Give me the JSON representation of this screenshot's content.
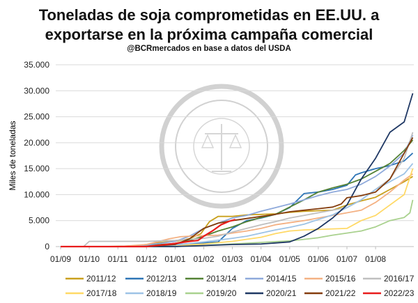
{
  "chart_data": {
    "type": "line",
    "title_line1": "Toneladas de soja comprometidas en EE.UU. a",
    "title_line2": "exportarse en la próxima campaña comercial",
    "subtitle": "@BCRmercados  en base a datos del USDA",
    "ylabel": "Miles de toneladas",
    "ylim": [
      0,
      35000
    ],
    "yticks": [
      0,
      5000,
      10000,
      15000,
      20000,
      25000,
      30000,
      35000
    ],
    "ytick_labels": [
      "0",
      "5.000",
      "10.000",
      "15.000",
      "20.000",
      "25.000",
      "30.000",
      "35.000"
    ],
    "xlim": [
      0,
      12.4
    ],
    "xticks": [
      0,
      1,
      2,
      3,
      4,
      5,
      6,
      7,
      8,
      9,
      10,
      11
    ],
    "xtick_labels": [
      "01/09",
      "01/10",
      "01/11",
      "01/12",
      "01/01",
      "01/02",
      "01/03",
      "01/04",
      "01/05",
      "01/06",
      "01/07",
      "01/08"
    ],
    "grid": "horizontal",
    "legend_position": "bottom",
    "watermark": "BOLSA DE COMERCIO DE ROSARIO",
    "series": [
      {
        "name": "2011/12",
        "color": "#c9a01c",
        "points": [
          [
            0,
            0
          ],
          [
            1.5,
            0
          ],
          [
            2.5,
            100
          ],
          [
            3.0,
            400
          ],
          [
            3.5,
            800
          ],
          [
            4.0,
            1000
          ],
          [
            4.5,
            1500
          ],
          [
            4.9,
            2500
          ],
          [
            5.2,
            4800
          ],
          [
            5.5,
            5800
          ],
          [
            6.0,
            5800
          ],
          [
            6.5,
            6100
          ],
          [
            7.0,
            6200
          ],
          [
            7.5,
            6300
          ],
          [
            8.0,
            6600
          ],
          [
            8.5,
            6800
          ],
          [
            9.0,
            6900
          ],
          [
            9.5,
            7000
          ],
          [
            10.0,
            8000
          ],
          [
            10.5,
            8800
          ],
          [
            11.0,
            9500
          ],
          [
            11.5,
            11000
          ],
          [
            12.0,
            12500
          ],
          [
            12.3,
            13500
          ]
        ]
      },
      {
        "name": "2012/13",
        "color": "#2e75b6",
        "points": [
          [
            0,
            0
          ],
          [
            2.0,
            0
          ],
          [
            3.0,
            100
          ],
          [
            4.0,
            400
          ],
          [
            5.0,
            700
          ],
          [
            5.5,
            900
          ],
          [
            6.0,
            3500
          ],
          [
            6.5,
            5000
          ],
          [
            7.0,
            5500
          ],
          [
            7.5,
            6200
          ],
          [
            8.0,
            7500
          ],
          [
            8.5,
            10200
          ],
          [
            9.0,
            10500
          ],
          [
            9.5,
            11000
          ],
          [
            10.0,
            11800
          ],
          [
            10.3,
            13800
          ],
          [
            10.5,
            14200
          ],
          [
            11.0,
            15000
          ],
          [
            11.5,
            15600
          ],
          [
            12.0,
            16500
          ],
          [
            12.3,
            18000
          ]
        ]
      },
      {
        "name": "2013/14",
        "color": "#548235",
        "points": [
          [
            0,
            0
          ],
          [
            2.0,
            0
          ],
          [
            3.0,
            200
          ],
          [
            4.0,
            600
          ],
          [
            4.5,
            1200
          ],
          [
            5.0,
            2000
          ],
          [
            5.5,
            3000
          ],
          [
            6.0,
            3800
          ],
          [
            6.5,
            4800
          ],
          [
            7.0,
            5600
          ],
          [
            7.5,
            6200
          ],
          [
            8.0,
            7600
          ],
          [
            8.5,
            9000
          ],
          [
            9.0,
            10500
          ],
          [
            9.5,
            11300
          ],
          [
            10.0,
            12000
          ],
          [
            10.5,
            13000
          ],
          [
            11.0,
            14500
          ],
          [
            11.5,
            16000
          ],
          [
            12.0,
            18500
          ],
          [
            12.3,
            20500
          ]
        ]
      },
      {
        "name": "2014/15",
        "color": "#8ea9db",
        "points": [
          [
            0,
            0
          ],
          [
            2.0,
            0
          ],
          [
            3.0,
            300
          ],
          [
            4.0,
            1000
          ],
          [
            4.5,
            2000
          ],
          [
            5.0,
            3500
          ],
          [
            5.5,
            4500
          ],
          [
            6.0,
            5500
          ],
          [
            6.5,
            6000
          ],
          [
            7.0,
            6800
          ],
          [
            7.5,
            7500
          ],
          [
            8.0,
            8200
          ],
          [
            8.5,
            9000
          ],
          [
            9.0,
            9800
          ],
          [
            9.5,
            10500
          ],
          [
            10.0,
            11000
          ],
          [
            10.5,
            12000
          ],
          [
            11.0,
            13500
          ],
          [
            11.5,
            15500
          ],
          [
            12.0,
            18000
          ],
          [
            12.3,
            21500
          ]
        ]
      },
      {
        "name": "2015/16",
        "color": "#f4b183",
        "points": [
          [
            0,
            0
          ],
          [
            2.0,
            0
          ],
          [
            3.0,
            400
          ],
          [
            3.8,
            1500
          ],
          [
            4.2,
            1900
          ],
          [
            4.5,
            2000
          ],
          [
            5.0,
            2100
          ],
          [
            5.5,
            2200
          ],
          [
            6.0,
            2600
          ],
          [
            6.5,
            3000
          ],
          [
            7.0,
            3500
          ],
          [
            7.5,
            4200
          ],
          [
            8.0,
            4600
          ],
          [
            8.5,
            5000
          ],
          [
            9.0,
            5500
          ],
          [
            9.5,
            6000
          ],
          [
            10.0,
            6500
          ],
          [
            10.5,
            7000
          ],
          [
            11.0,
            8500
          ],
          [
            11.5,
            10500
          ],
          [
            12.0,
            12800
          ],
          [
            12.3,
            14000
          ]
        ]
      },
      {
        "name": "2016/17",
        "color": "#bfbfbf",
        "points": [
          [
            0,
            0
          ],
          [
            0.8,
            0
          ],
          [
            1.0,
            1000
          ],
          [
            2.0,
            1000
          ],
          [
            3.0,
            1000
          ],
          [
            4.0,
            1200
          ],
          [
            4.5,
            1400
          ],
          [
            5.0,
            1600
          ],
          [
            5.5,
            2000
          ],
          [
            6.0,
            2800
          ],
          [
            6.5,
            3500
          ],
          [
            7.0,
            4200
          ],
          [
            7.5,
            4800
          ],
          [
            8.0,
            5500
          ],
          [
            8.5,
            6000
          ],
          [
            9.0,
            6500
          ],
          [
            9.5,
            7000
          ],
          [
            10.0,
            7500
          ],
          [
            10.5,
            9000
          ],
          [
            11.0,
            11000
          ],
          [
            11.5,
            13000
          ],
          [
            12.0,
            17000
          ],
          [
            12.3,
            22000
          ]
        ]
      },
      {
        "name": "2017/18",
        "color": "#ffd966",
        "points": [
          [
            0,
            0
          ],
          [
            3.0,
            0
          ],
          [
            4.0,
            200
          ],
          [
            5.0,
            500
          ],
          [
            6.0,
            1000
          ],
          [
            7.0,
            1800
          ],
          [
            7.5,
            2500
          ],
          [
            8.0,
            3000
          ],
          [
            8.5,
            3200
          ],
          [
            9.0,
            3300
          ],
          [
            9.5,
            3400
          ],
          [
            10.0,
            3500
          ],
          [
            10.5,
            5000
          ],
          [
            11.0,
            6000
          ],
          [
            11.5,
            8000
          ],
          [
            12.0,
            10000
          ],
          [
            12.3,
            15000
          ]
        ]
      },
      {
        "name": "2018/19",
        "color": "#9dc3e6",
        "points": [
          [
            0,
            0
          ],
          [
            3.0,
            0
          ],
          [
            4.0,
            300
          ],
          [
            5.0,
            900
          ],
          [
            6.0,
            1600
          ],
          [
            6.5,
            2000
          ],
          [
            7.0,
            2600
          ],
          [
            7.5,
            3200
          ],
          [
            8.0,
            3700
          ],
          [
            8.5,
            4300
          ],
          [
            9.0,
            5200
          ],
          [
            9.5,
            6100
          ],
          [
            10.0,
            7500
          ],
          [
            10.5,
            9000
          ],
          [
            11.0,
            11000
          ],
          [
            11.5,
            12500
          ],
          [
            12.0,
            14000
          ],
          [
            12.3,
            16000
          ]
        ]
      },
      {
        "name": "2019/20",
        "color": "#a9d18e",
        "points": [
          [
            0,
            0
          ],
          [
            4.0,
            0
          ],
          [
            5.0,
            200
          ],
          [
            6.0,
            500
          ],
          [
            7.0,
            800
          ],
          [
            8.0,
            1100
          ],
          [
            8.5,
            1400
          ],
          [
            9.0,
            1700
          ],
          [
            9.5,
            2200
          ],
          [
            10.0,
            2600
          ],
          [
            10.5,
            3000
          ],
          [
            11.0,
            3800
          ],
          [
            11.5,
            5000
          ],
          [
            12.0,
            5600
          ],
          [
            12.2,
            6500
          ],
          [
            12.3,
            9000
          ]
        ]
      },
      {
        "name": "2020/21",
        "color": "#1f3864",
        "points": [
          [
            0,
            0
          ],
          [
            4.0,
            0
          ],
          [
            5.0,
            200
          ],
          [
            6.0,
            400
          ],
          [
            7.0,
            500
          ],
          [
            7.5,
            700
          ],
          [
            8.0,
            900
          ],
          [
            8.5,
            2000
          ],
          [
            9.0,
            3500
          ],
          [
            9.5,
            5500
          ],
          [
            10.0,
            8000
          ],
          [
            10.5,
            13000
          ],
          [
            11.0,
            17000
          ],
          [
            11.5,
            22000
          ],
          [
            12.0,
            24000
          ],
          [
            12.3,
            29500
          ]
        ]
      },
      {
        "name": "2021/22",
        "color": "#843c0c",
        "points": [
          [
            0,
            0
          ],
          [
            3.0,
            0
          ],
          [
            4.0,
            400
          ],
          [
            4.5,
            1500
          ],
          [
            5.0,
            3500
          ],
          [
            5.5,
            4500
          ],
          [
            6.0,
            5000
          ],
          [
            6.5,
            5400
          ],
          [
            7.0,
            5800
          ],
          [
            7.5,
            6200
          ],
          [
            8.0,
            6700
          ],
          [
            8.5,
            7000
          ],
          [
            9.0,
            7300
          ],
          [
            9.5,
            7600
          ],
          [
            9.8,
            8200
          ],
          [
            10.0,
            9400
          ],
          [
            10.5,
            9800
          ],
          [
            11.0,
            10500
          ],
          [
            11.5,
            13000
          ],
          [
            12.0,
            18000
          ],
          [
            12.3,
            21000
          ]
        ]
      },
      {
        "name": "2022/23",
        "color": "#e81c1c",
        "points": [
          [
            0,
            0
          ],
          [
            3.0,
            0
          ],
          [
            3.5,
            300
          ],
          [
            4.0,
            600
          ],
          [
            4.5,
            1000
          ],
          [
            4.8,
            1200
          ],
          [
            5.0,
            2000
          ],
          [
            5.3,
            3000
          ],
          [
            5.6,
            4200
          ],
          [
            5.9,
            4900
          ],
          [
            6.1,
            5200
          ]
        ]
      }
    ]
  }
}
